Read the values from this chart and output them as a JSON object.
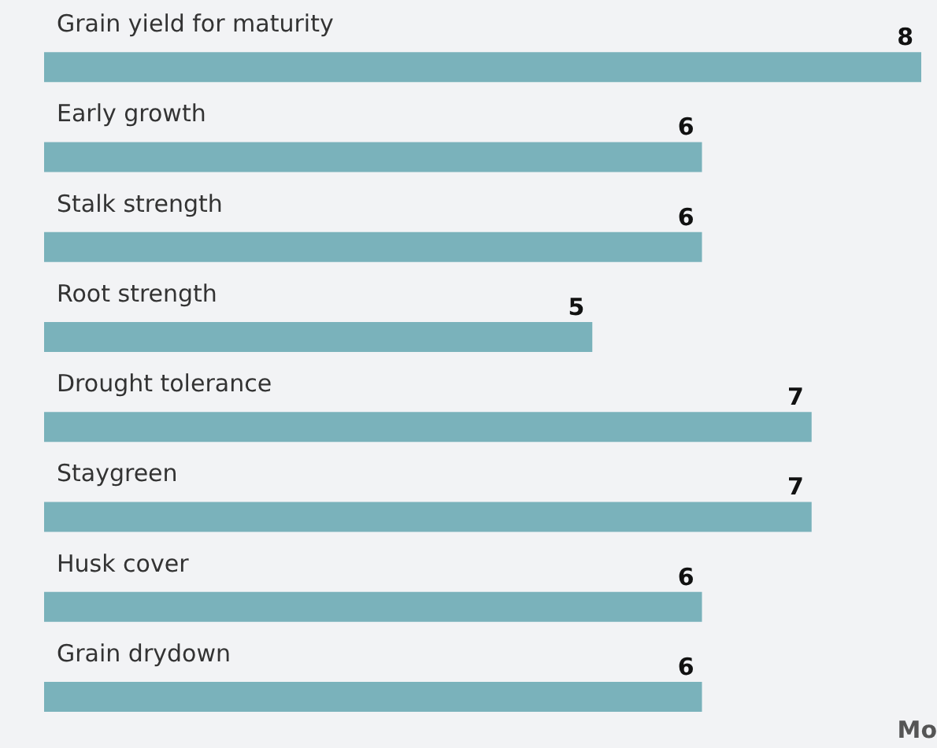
{
  "chart_data": {
    "type": "bar",
    "orientation": "horizontal",
    "categories": [
      "Grain yield for maturity",
      "Early growth",
      "Stalk strength",
      "Root strength",
      "Drought tolerance",
      "Staygreen",
      "Husk cover",
      "Grain drydown"
    ],
    "values": [
      8,
      6,
      6,
      5,
      7,
      7,
      6,
      6
    ],
    "color": "#7ab2bb",
    "xlim": [
      0,
      8
    ],
    "tick_labels": "y",
    "data_labels": true,
    "annotations": [
      "Mo"
    ]
  }
}
